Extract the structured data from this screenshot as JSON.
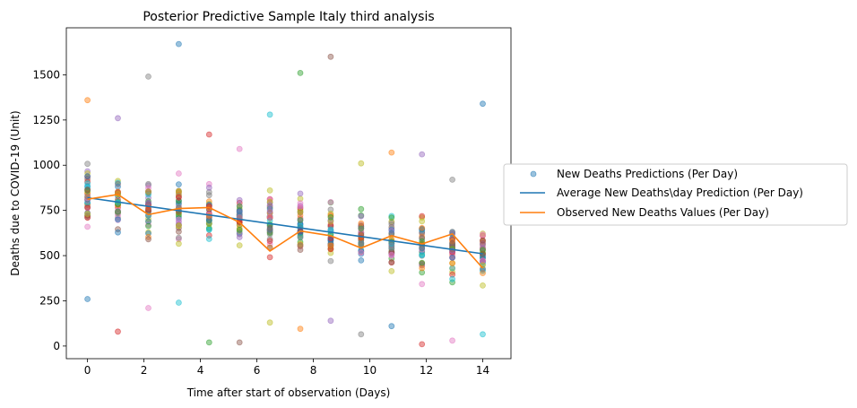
{
  "chart_data": {
    "type": "scatter",
    "title": "Posterior Predictive Sample Italy third analysis",
    "xlabel": "Time after start of observation (Days)",
    "ylabel": "Deaths due to COVID-19 (Unit)",
    "xlim": [
      -0.75,
      15.0
    ],
    "ylim": [
      -70,
      1760
    ],
    "xticks": [
      "0",
      "2",
      "4",
      "6",
      "8",
      "10",
      "12",
      "14"
    ],
    "yticks": [
      "0",
      "250",
      "500",
      "750",
      "1000",
      "1250",
      "1500"
    ],
    "grid": false,
    "legend_position": "right, outside plot",
    "x_positions": [
      0,
      1.077,
      2.154,
      3.231,
      4.308,
      5.385,
      6.462,
      7.538,
      8.615,
      9.692,
      10.769,
      11.846,
      12.923,
      14
    ],
    "samples_per_day": 40,
    "sample_colors": [
      "#1f77b4",
      "#ff7f0e",
      "#2ca02c",
      "#d62728",
      "#9467bd",
      "#8c564b",
      "#e377c2",
      "#7f7f7f",
      "#bcbd22",
      "#17becf"
    ],
    "prediction_distribution": [
      {
        "min": 260,
        "max": 1360
      },
      {
        "min": 80,
        "max": 1260
      },
      {
        "min": 210,
        "max": 1490
      },
      {
        "min": 240,
        "max": 1670
      },
      {
        "min": 20,
        "max": 1170
      },
      {
        "min": 20,
        "max": 1090
      },
      {
        "min": 130,
        "max": 1280
      },
      {
        "min": 95,
        "max": 1510
      },
      {
        "min": 140,
        "max": 1600
      },
      {
        "min": 65,
        "max": 1010
      },
      {
        "min": 110,
        "max": 1070
      },
      {
        "min": 10,
        "max": 1060
      },
      {
        "min": 30,
        "max": 920
      },
      {
        "min": 65,
        "max": 1340
      }
    ],
    "series": [
      {
        "name": "New Deaths Predictions (Per Day)",
        "kind": "scatter",
        "color": "#1f77b4"
      },
      {
        "name": "Average New Deaths\\day Prediction (Per Day)",
        "kind": "line",
        "color": "#1f77b4",
        "x": [
          0,
          14
        ],
        "y": [
          820,
          510
        ]
      },
      {
        "name": "Observed New Deaths Values (Per Day)",
        "kind": "line",
        "color": "#ff7f0e",
        "x": [
          0,
          1.077,
          2.154,
          3.231,
          4.308,
          5.385,
          6.462,
          7.538,
          8.615,
          9.692,
          10.769,
          11.846,
          12.923,
          14
        ],
        "y": [
          812,
          838,
          727,
          760,
          766,
          684,
          525,
          636,
          610,
          542,
          610,
          565,
          620,
          431
        ]
      }
    ]
  }
}
